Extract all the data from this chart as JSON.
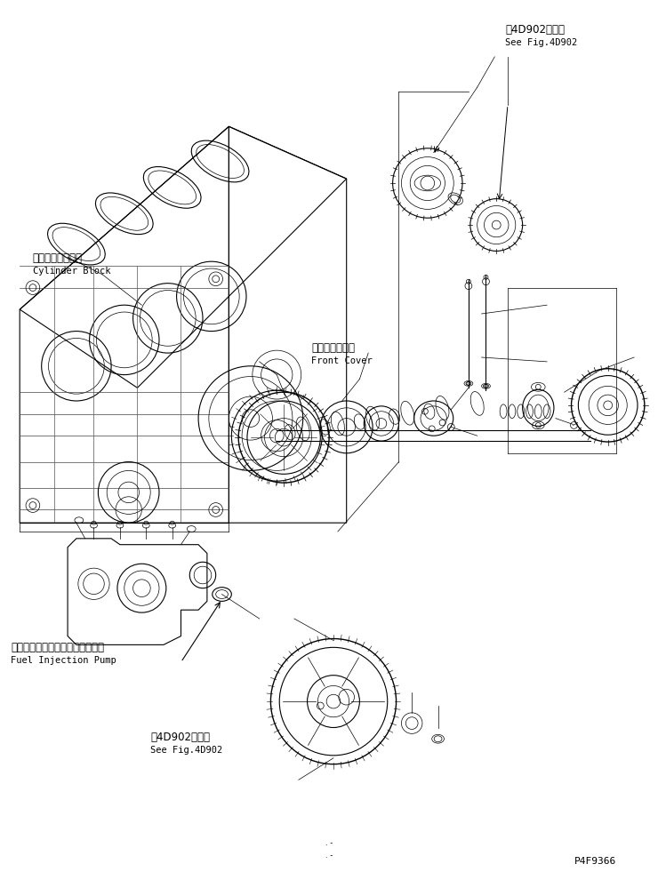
{
  "bg_color": "#ffffff",
  "line_color": "#000000",
  "fig_width": 7.49,
  "fig_height": 9.99,
  "dpi": 100,
  "labels": {
    "top_ref_jp": "笥4D902図参照",
    "top_ref_en": "See Fig.4D902",
    "cylinder_block_jp": "シリンダブロック",
    "cylinder_block_en": "Cylinder Block",
    "front_cover_jp": "フロントカバー",
    "front_cover_en": "Front Cover",
    "fuel_pump_jp": "フゥエルインジェクションポンプ",
    "fuel_pump_en": "Fuel Injection Pump",
    "bottom_ref_jp": "笥4D902図参照",
    "bottom_ref_en": "See Fig.4D902",
    "part_number": "P4F9366"
  },
  "coord_system": {
    "x_max": 749,
    "y_max": 999
  }
}
